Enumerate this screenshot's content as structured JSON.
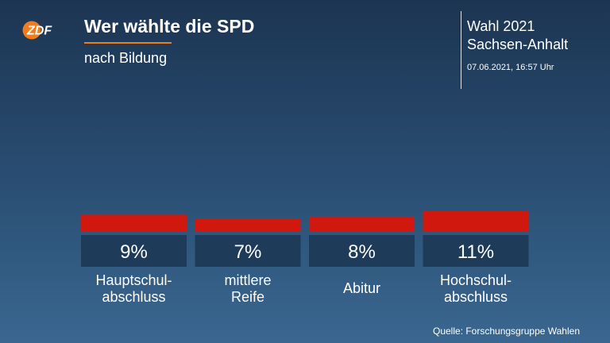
{
  "brand": {
    "logo_text": "ZDF",
    "accent_color": "#f27b1c"
  },
  "header": {
    "title": "Wer wählte die SPD",
    "subtitle": "nach Bildung",
    "election_line1": "Wahl 2021",
    "election_line2": "Sachsen-Anhalt",
    "timestamp": "07.06.2021, 16:57 Uhr"
  },
  "chart_data": {
    "type": "bar",
    "title": "Wer wählte die SPD",
    "subtitle": "nach Bildung",
    "categories": [
      [
        "Hauptschul-",
        "abschluss"
      ],
      [
        "mittlere",
        "Reife"
      ],
      [
        "Abitur"
      ],
      [
        "Hochschul-",
        "abschluss"
      ]
    ],
    "values": [
      9,
      7,
      8,
      11
    ],
    "value_labels": [
      "9%",
      "7%",
      "8%",
      "11%"
    ],
    "unit": "%",
    "bar_color": "#d0180f",
    "label_box_color": "#1f3b5a",
    "grid": false
  },
  "footer": {
    "source": "Quelle: Forschungsgruppe Wahlen"
  }
}
